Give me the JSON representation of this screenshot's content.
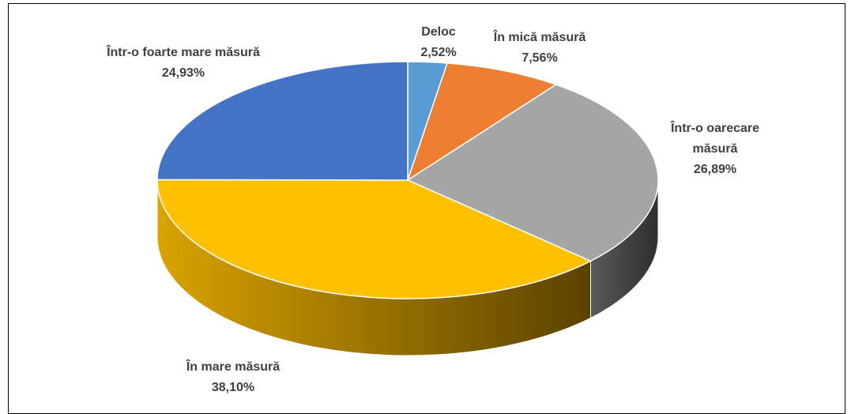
{
  "chart_data": {
    "type": "pie",
    "categories": [
      "Deloc",
      "În mică măsură",
      "Într-o oarecare măsură",
      "În mare măsură",
      "Într-o foarte mare măsură"
    ],
    "values": [
      2.52,
      7.56,
      26.89,
      38.1,
      24.93
    ],
    "value_labels": [
      "2,52%",
      "7,56%",
      "26,89%",
      "38,10%",
      "24,93%"
    ],
    "colors": [
      "#5b9bd5",
      "#ed7d31",
      "#a5a5a5",
      "#ffc000",
      "#4472c4"
    ]
  }
}
